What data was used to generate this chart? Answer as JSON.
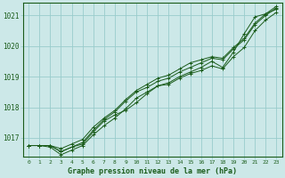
{
  "title": "Graphe pression niveau de la mer (hPa)",
  "bg_color": "#cce8e8",
  "grid_color": "#99cccc",
  "line_color": "#1a5c1a",
  "marker_color": "#1a5c1a",
  "text_color": "#1a5c1a",
  "x_min": -0.5,
  "x_max": 23.5,
  "y_min": 1016.4,
  "y_max": 1021.4,
  "yticks": [
    1017,
    1018,
    1019,
    1020,
    1021
  ],
  "xticks": [
    0,
    1,
    2,
    3,
    4,
    5,
    6,
    7,
    8,
    9,
    10,
    11,
    12,
    13,
    14,
    15,
    16,
    17,
    18,
    19,
    20,
    21,
    22,
    23
  ],
  "series": [
    [
      1016.75,
      1016.75,
      1016.75,
      1016.55,
      1016.7,
      1016.8,
      1017.2,
      1017.55,
      1017.75,
      1017.9,
      1018.15,
      1018.45,
      1018.7,
      1018.8,
      1019.0,
      1019.15,
      1019.3,
      1019.5,
      1019.3,
      1019.8,
      1020.4,
      1020.95,
      1021.05,
      1021.2
    ],
    [
      1016.75,
      1016.75,
      1016.75,
      1016.55,
      1016.7,
      1016.85,
      1017.25,
      1017.6,
      1017.85,
      1018.2,
      1018.5,
      1018.65,
      1018.85,
      1018.95,
      1019.15,
      1019.3,
      1019.45,
      1019.6,
      1019.55,
      1019.9,
      1020.2,
      1020.7,
      1021.0,
      1021.25
    ],
    [
      1016.75,
      1016.75,
      1016.7,
      1016.45,
      1016.6,
      1016.75,
      1017.1,
      1017.4,
      1017.65,
      1017.95,
      1018.3,
      1018.5,
      1018.7,
      1018.75,
      1018.95,
      1019.1,
      1019.2,
      1019.35,
      1019.25,
      1019.65,
      1019.95,
      1020.5,
      1020.85,
      1021.1
    ],
    [
      1016.75,
      1016.75,
      1016.75,
      1016.65,
      1016.8,
      1016.95,
      1017.35,
      1017.65,
      1017.9,
      1018.25,
      1018.55,
      1018.75,
      1018.95,
      1019.05,
      1019.25,
      1019.45,
      1019.55,
      1019.65,
      1019.6,
      1019.95,
      1020.25,
      1020.75,
      1021.05,
      1021.3
    ]
  ]
}
